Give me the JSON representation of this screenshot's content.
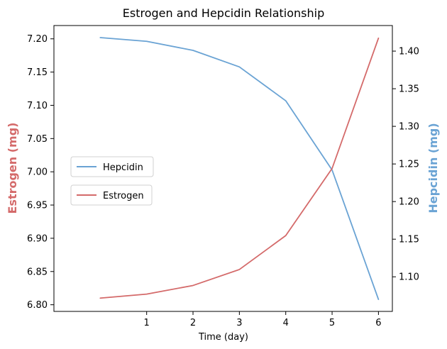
{
  "chart_data": {
    "type": "line",
    "title": "Estrogen and Hepcidin Relationship",
    "xlabel": "Time (day)",
    "ylabel_left": "Estrogen (mg)",
    "ylabel_right": "Hepcidin (mg)",
    "x": [
      0,
      1,
      2,
      3,
      4,
      5,
      6
    ],
    "xticks": [
      1,
      2,
      3,
      4,
      5,
      6
    ],
    "xtick_labels": [
      "1",
      "2",
      "3",
      "4",
      "5",
      "6"
    ],
    "xlim": [
      -1.0,
      6.3
    ],
    "ylim_left": [
      6.79,
      7.22
    ],
    "ylim_right": [
      1.054,
      1.434
    ],
    "yticks_left": [
      6.8,
      6.85,
      6.9,
      6.95,
      7.0,
      7.05,
      7.1,
      7.15,
      7.2
    ],
    "yticks_left_labels": [
      "6.80",
      "6.85",
      "6.90",
      "6.95",
      "7.00",
      "7.05",
      "7.10",
      "7.15",
      "7.20"
    ],
    "yticks_right": [
      1.1,
      1.15,
      1.2,
      1.25,
      1.3,
      1.35,
      1.4
    ],
    "yticks_right_labels": [
      "1.10",
      "1.15",
      "1.20",
      "1.25",
      "1.30",
      "1.35",
      "1.40"
    ],
    "series": [
      {
        "name": "Hepcidin",
        "axis": "right",
        "color": "#6aa3d4",
        "values": [
          1.418,
          1.413,
          1.401,
          1.379,
          1.334,
          1.242,
          1.07
        ]
      },
      {
        "name": "Estrogen",
        "axis": "left",
        "color": "#d46a6a",
        "values": [
          6.81,
          6.816,
          6.829,
          6.853,
          6.904,
          7.005,
          7.201
        ]
      }
    ],
    "legend_position": "center-left",
    "grid": false
  }
}
